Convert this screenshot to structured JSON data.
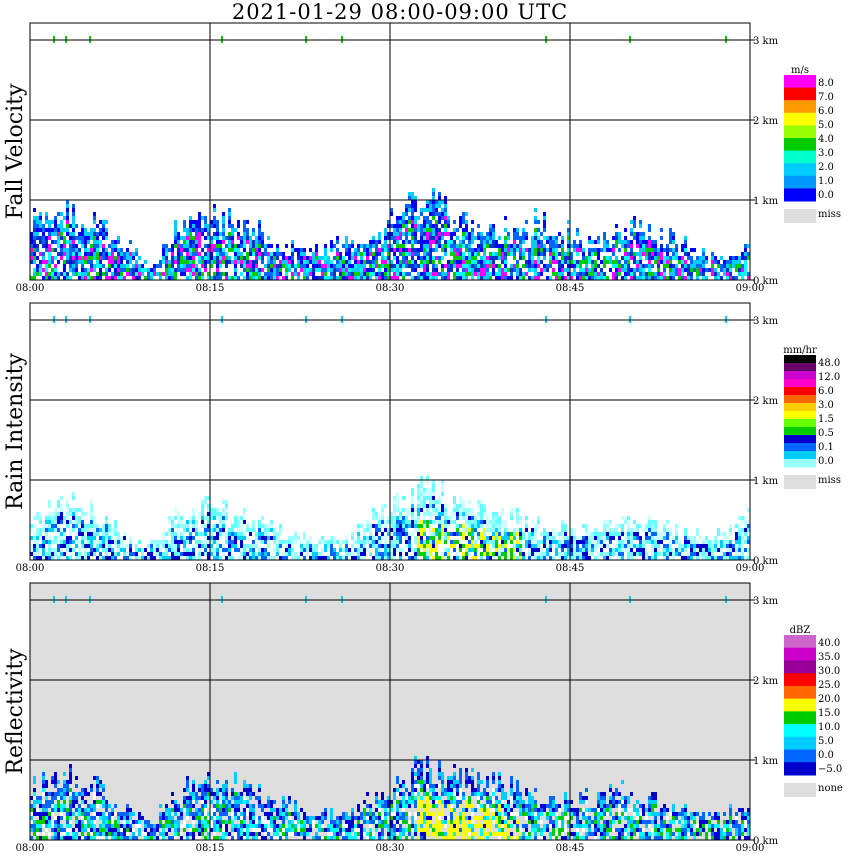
{
  "title": "2021-01-29   08:00-09:00 UTC",
  "chart_data": [
    {
      "type": "heatmap",
      "panel": "fall_velocity",
      "ylabel": "Fall Velocity",
      "xticks": [
        "08:00",
        "08:15",
        "08:30",
        "08:45",
        "09:00"
      ],
      "yticks": [
        "0 km",
        "1 km",
        "2 km",
        "3 km"
      ],
      "xlim": [
        "08:00",
        "09:00"
      ],
      "ylim": [
        0,
        3.1
      ],
      "grid": true,
      "missing_background": false,
      "colorbar": {
        "unit": "m/s",
        "labels": [
          "8.0",
          "7.0",
          "6.0",
          "5.0",
          "4.0",
          "3.0",
          "2.0",
          "1.0",
          "0.0"
        ],
        "colors": [
          "#ff00ff",
          "#ff0000",
          "#ff9900",
          "#ffff00",
          "#99ff00",
          "#00cc00",
          "#00ffcc",
          "#00ccff",
          "#0099ff",
          "#0000ff"
        ],
        "missing_label": "miss",
        "missing_color": "#dddddd"
      },
      "echo_colors": [
        "#0000ff",
        "#0066ff",
        "#00ccff",
        "#00ffff",
        "#0033cc",
        "#ff00ff",
        "#00cc00"
      ],
      "echo_top_profile": [
        [
          0,
          0.95
        ],
        [
          3,
          1.1
        ],
        [
          6,
          0.85
        ],
        [
          8,
          0.6
        ],
        [
          9,
          0.4
        ],
        [
          10,
          0.2
        ],
        [
          12,
          0.8
        ],
        [
          15,
          1.0
        ],
        [
          18,
          0.95
        ],
        [
          21,
          0.6
        ],
        [
          23,
          0.45
        ],
        [
          26,
          0.6
        ],
        [
          28,
          0.7
        ],
        [
          30,
          0.95
        ],
        [
          33,
          1.3
        ],
        [
          36,
          0.9
        ],
        [
          39,
          0.8
        ],
        [
          42,
          0.95
        ],
        [
          44,
          0.85
        ],
        [
          47,
          0.6
        ],
        [
          50,
          0.85
        ],
        [
          53,
          0.7
        ],
        [
          56,
          0.5
        ],
        [
          58,
          0.3
        ],
        [
          60,
          0.6
        ]
      ],
      "high_specks_min": [
        2,
        3,
        5,
        16,
        23,
        26,
        43,
        50,
        58
      ]
    },
    {
      "type": "heatmap",
      "panel": "rain_intensity",
      "ylabel": "Rain Intensity",
      "xticks": [
        "08:00",
        "08:15",
        "08:30",
        "08:45",
        "09:00"
      ],
      "yticks": [
        "0 km",
        "1 km",
        "2 km",
        "3 km"
      ],
      "xlim": [
        "08:00",
        "09:00"
      ],
      "ylim": [
        0,
        3.1
      ],
      "grid": true,
      "missing_background": false,
      "colorbar": {
        "unit": "mm/hr",
        "labels": [
          "48.0",
          "12.0",
          "6.0",
          "3.0",
          "1.5",
          "0.5",
          "0.1",
          "0.0"
        ],
        "colors": [
          "#000000",
          "#660066",
          "#cc00cc",
          "#ff00cc",
          "#ff0000",
          "#ff6600",
          "#ffcc00",
          "#ffff00",
          "#66ff00",
          "#00cc00",
          "#0000cc",
          "#0066ff",
          "#00ccff",
          "#99ffff"
        ],
        "missing_label": "miss",
        "missing_color": "#dddddd"
      },
      "echo_colors": [
        "#99ffff",
        "#ccffff",
        "#66ffff",
        "#00ccff",
        "#0066ff",
        "#0000cc"
      ],
      "echo_top_profile": [
        [
          0,
          0.6
        ],
        [
          3,
          1.0
        ],
        [
          6,
          0.7
        ],
        [
          8,
          0.4
        ],
        [
          10,
          0.3
        ],
        [
          12,
          0.7
        ],
        [
          15,
          0.9
        ],
        [
          18,
          0.7
        ],
        [
          21,
          0.5
        ],
        [
          24,
          0.3
        ],
        [
          27,
          0.45
        ],
        [
          30,
          0.9
        ],
        [
          33,
          1.2
        ],
        [
          36,
          0.9
        ],
        [
          39,
          0.8
        ],
        [
          42,
          0.6
        ],
        [
          45,
          0.5
        ],
        [
          48,
          0.6
        ],
        [
          51,
          0.7
        ],
        [
          54,
          0.5
        ],
        [
          57,
          0.4
        ],
        [
          60,
          0.7
        ]
      ],
      "high_specks_min": [
        2,
        3,
        5,
        16,
        23,
        26,
        43,
        50,
        58
      ]
    },
    {
      "type": "heatmap",
      "panel": "reflectivity",
      "ylabel": "Reflectivity",
      "xticks": [
        "08:00",
        "08:15",
        "08:30",
        "08:45",
        "09:00"
      ],
      "yticks": [
        "0 km",
        "1 km",
        "2 km",
        "3 km"
      ],
      "xlim": [
        "08:00",
        "09:00"
      ],
      "ylim": [
        0,
        3.1
      ],
      "grid": true,
      "missing_background": true,
      "colorbar": {
        "unit": "dBZ",
        "labels": [
          "40.0",
          "35.0",
          "30.0",
          "25.0",
          "20.0",
          "15.0",
          "10.0",
          "5.0",
          "0.0",
          "−5.0"
        ],
        "colors": [
          "#cc66cc",
          "#cc00cc",
          "#990099",
          "#ff0000",
          "#ff6600",
          "#ffff00",
          "#00cc00",
          "#00ffff",
          "#00ccff",
          "#0066ff",
          "#0000cc"
        ],
        "missing_label": "none",
        "missing_color": "#dddddd"
      },
      "echo_colors": [
        "#0000cc",
        "#0066ff",
        "#00ccff",
        "#00ffff",
        "#00cc00",
        "#ffffff"
      ],
      "echo_top_profile": [
        [
          0,
          0.9
        ],
        [
          3,
          1.0
        ],
        [
          6,
          0.8
        ],
        [
          8,
          0.5
        ],
        [
          10,
          0.3
        ],
        [
          12,
          0.8
        ],
        [
          15,
          0.95
        ],
        [
          18,
          0.85
        ],
        [
          21,
          0.6
        ],
        [
          24,
          0.4
        ],
        [
          27,
          0.5
        ],
        [
          30,
          0.95
        ],
        [
          33,
          1.2
        ],
        [
          36,
          0.95
        ],
        [
          39,
          0.9
        ],
        [
          42,
          0.7
        ],
        [
          45,
          0.6
        ],
        [
          48,
          0.8
        ],
        [
          51,
          0.7
        ],
        [
          54,
          0.5
        ],
        [
          57,
          0.4
        ],
        [
          60,
          0.6
        ]
      ],
      "high_specks_min": [
        2,
        3,
        5,
        16,
        23,
        26,
        43,
        50,
        58
      ]
    }
  ]
}
